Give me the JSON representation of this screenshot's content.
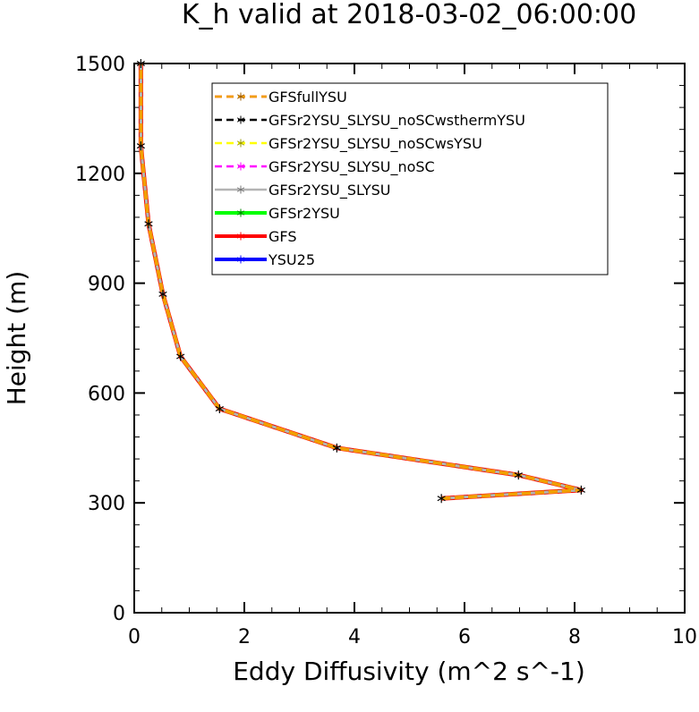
{
  "chart_data": {
    "type": "line",
    "title": "K_h valid at 2018-03-02_06:00:00",
    "xlabel": "Eddy Diffusivity (m^2 s^-1)",
    "ylabel": "Height (m)",
    "xlim": [
      0,
      10
    ],
    "ylim": [
      0,
      1500
    ],
    "xticks": [
      "0",
      "2",
      "4",
      "6",
      "8",
      "10"
    ],
    "yticks": [
      "0",
      "300",
      "600",
      "900",
      "1200",
      "1500"
    ],
    "grid": false,
    "legend_position": "top-right",
    "series": [
      {
        "name": "GFSfullYSU",
        "color": "#ff0000",
        "style": "dashed",
        "points": [
          {
            "x": 5.58,
            "y": 312
          },
          {
            "x": 8.12,
            "y": 335
          },
          {
            "x": 6.98,
            "y": 376
          },
          {
            "x": 3.68,
            "y": 450
          },
          {
            "x": 1.55,
            "y": 557
          },
          {
            "x": 0.84,
            "y": 700
          },
          {
            "x": 0.52,
            "y": 870
          },
          {
            "x": 0.26,
            "y": 1062
          },
          {
            "x": 0.12,
            "y": 1275
          },
          {
            "x": 0.12,
            "y": 1500
          }
        ]
      },
      {
        "name": "GFSr2YSU_SLYSU_noSCwsthermYSU",
        "color": "#000000",
        "style": "dashed",
        "points": [
          {
            "x": 5.58,
            "y": 312
          },
          {
            "x": 8.12,
            "y": 335
          },
          {
            "x": 6.98,
            "y": 376
          },
          {
            "x": 3.68,
            "y": 450
          },
          {
            "x": 1.55,
            "y": 557
          },
          {
            "x": 0.84,
            "y": 700
          },
          {
            "x": 0.52,
            "y": 870
          },
          {
            "x": 0.26,
            "y": 1062
          },
          {
            "x": 0.12,
            "y": 1275
          },
          {
            "x": 0.12,
            "y": 1500
          }
        ]
      },
      {
        "name": "GFSr2YSU_SLYSU_noSCwsYSU",
        "color": "#ffff00",
        "style": "dashed",
        "points": [
          {
            "x": 5.58,
            "y": 312
          },
          {
            "x": 8.12,
            "y": 335
          },
          {
            "x": 6.98,
            "y": 376
          },
          {
            "x": 3.68,
            "y": 450
          },
          {
            "x": 1.55,
            "y": 557
          },
          {
            "x": 0.84,
            "y": 700
          },
          {
            "x": 0.52,
            "y": 870
          },
          {
            "x": 0.26,
            "y": 1062
          },
          {
            "x": 0.12,
            "y": 1275
          },
          {
            "x": 0.12,
            "y": 1500
          }
        ]
      },
      {
        "name": "GFSr2YSU_SLYSU_noSC",
        "color": "#ff00ff",
        "style": "dashed",
        "points": [
          {
            "x": 5.58,
            "y": 312
          },
          {
            "x": 8.12,
            "y": 335
          },
          {
            "x": 6.98,
            "y": 376
          },
          {
            "x": 3.68,
            "y": 450
          },
          {
            "x": 1.55,
            "y": 557
          },
          {
            "x": 0.84,
            "y": 700
          },
          {
            "x": 0.52,
            "y": 870
          },
          {
            "x": 0.26,
            "y": 1062
          },
          {
            "x": 0.12,
            "y": 1275
          },
          {
            "x": 0.12,
            "y": 1500
          }
        ]
      },
      {
        "name": "GFSr2YSU_SLYSU",
        "color": "#b4b4b4",
        "style": "solid",
        "points": [
          {
            "x": 5.58,
            "y": 312
          },
          {
            "x": 8.12,
            "y": 335
          },
          {
            "x": 6.98,
            "y": 376
          },
          {
            "x": 3.68,
            "y": 450
          },
          {
            "x": 1.55,
            "y": 557
          },
          {
            "x": 0.84,
            "y": 700
          },
          {
            "x": 0.52,
            "y": 870
          },
          {
            "x": 0.26,
            "y": 1062
          },
          {
            "x": 0.12,
            "y": 1275
          },
          {
            "x": 0.12,
            "y": 1500
          }
        ]
      },
      {
        "name": "GFSr2YSU",
        "color": "#00ff00",
        "style": "solid",
        "points": [
          {
            "x": 5.58,
            "y": 312
          },
          {
            "x": 8.12,
            "y": 335
          },
          {
            "x": 6.98,
            "y": 376
          },
          {
            "x": 3.68,
            "y": 450
          },
          {
            "x": 1.55,
            "y": 557
          },
          {
            "x": 0.84,
            "y": 700
          },
          {
            "x": 0.52,
            "y": 870
          },
          {
            "x": 0.26,
            "y": 1062
          },
          {
            "x": 0.12,
            "y": 1275
          },
          {
            "x": 0.12,
            "y": 1500
          }
        ]
      },
      {
        "name": "GFS",
        "color": "#ff0000",
        "style": "solid",
        "points": [
          {
            "x": 5.58,
            "y": 312
          },
          {
            "x": 8.12,
            "y": 335
          },
          {
            "x": 6.98,
            "y": 376
          },
          {
            "x": 3.68,
            "y": 450
          },
          {
            "x": 1.55,
            "y": 557
          },
          {
            "x": 0.84,
            "y": 700
          },
          {
            "x": 0.52,
            "y": 870
          },
          {
            "x": 0.26,
            "y": 1062
          },
          {
            "x": 0.12,
            "y": 1275
          },
          {
            "x": 0.12,
            "y": 1500
          }
        ]
      },
      {
        "name": "YSU25",
        "color": "#0000ff",
        "style": "solid",
        "points": [
          {
            "x": 5.58,
            "y": 312
          },
          {
            "x": 8.12,
            "y": 335
          },
          {
            "x": 6.98,
            "y": 376
          },
          {
            "x": 3.68,
            "y": 450
          },
          {
            "x": 1.55,
            "y": 557
          },
          {
            "x": 0.84,
            "y": 700
          },
          {
            "x": 0.52,
            "y": 870
          },
          {
            "x": 0.26,
            "y": 1062
          },
          {
            "x": 0.12,
            "y": 1275
          },
          {
            "x": 0.12,
            "y": 1500
          }
        ]
      }
    ]
  }
}
